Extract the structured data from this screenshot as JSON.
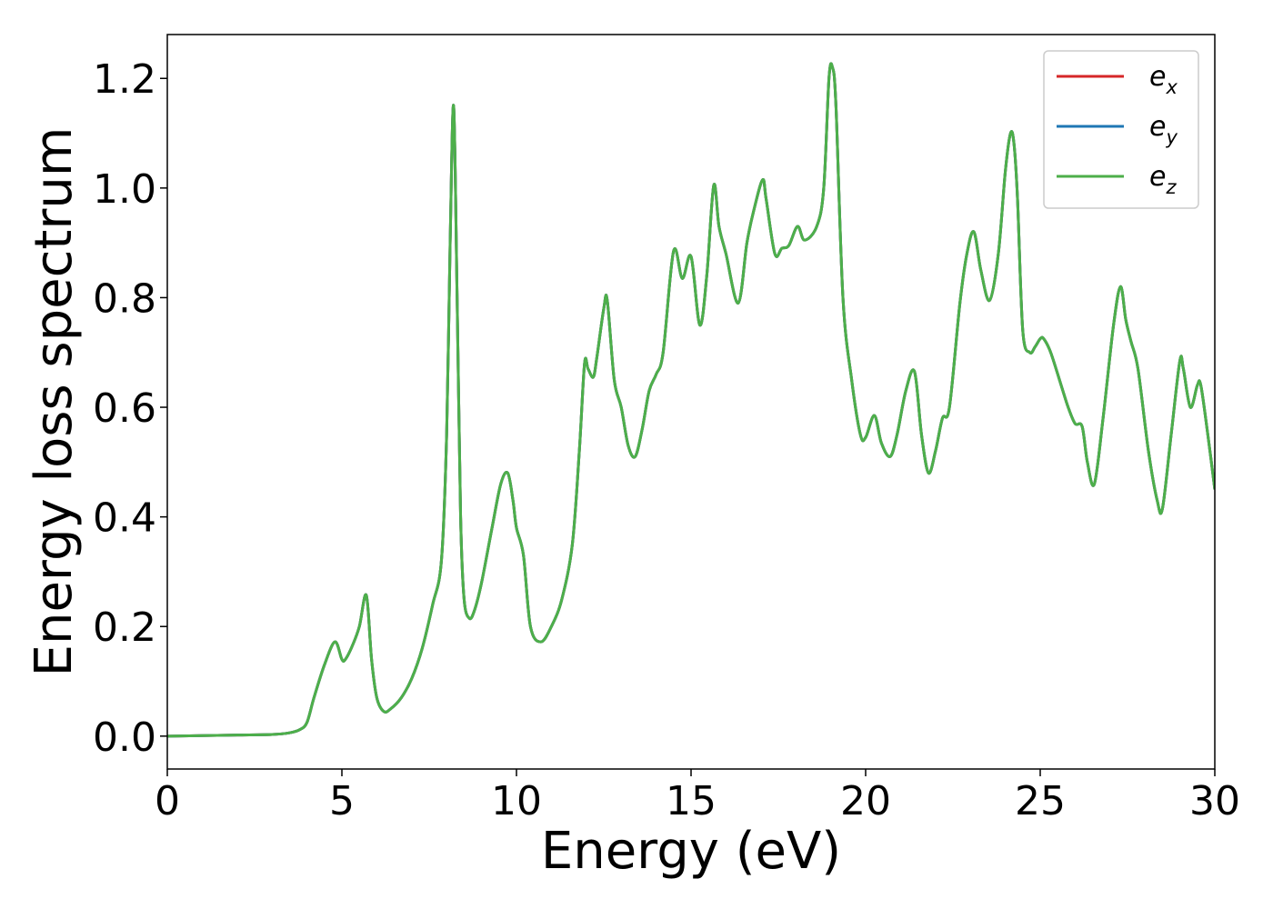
{
  "chart_data": {
    "type": "line",
    "xlabel": "Energy (eV)",
    "ylabel": "Energy loss spectrum",
    "xlim": [
      0,
      30
    ],
    "ylim": [
      -0.06,
      1.28
    ],
    "xticks": [
      0,
      5,
      10,
      15,
      20,
      25,
      30
    ],
    "xtick_labels": [
      "0",
      "5",
      "10",
      "15",
      "20",
      "25",
      "30"
    ],
    "yticks": [
      0.0,
      0.2,
      0.4,
      0.6,
      0.8,
      1.0,
      1.2
    ],
    "ytick_labels": [
      "0.0",
      "0.2",
      "0.4",
      "0.6",
      "0.8",
      "1.0",
      "1.2"
    ],
    "grid": false,
    "legend_position": "top-right",
    "series": [
      {
        "name_base": "e",
        "name_sub": "x",
        "color": "#d62728",
        "ref": "x"
      },
      {
        "name_base": "e",
        "name_sub": "y",
        "color": "#1f77b4",
        "ref": "x"
      },
      {
        "name_base": "e",
        "name_sub": "z",
        "color": "#4daf4a",
        "ref": "x"
      }
    ],
    "x": [
      0,
      1,
      2,
      3,
      3.5,
      3.8,
      4.0,
      4.2,
      4.5,
      4.8,
      5.0,
      5.1,
      5.3,
      5.5,
      5.7,
      5.85,
      6.0,
      6.2,
      6.4,
      6.7,
      7.0,
      7.3,
      7.6,
      7.85,
      8.0,
      8.1,
      8.2,
      8.3,
      8.4,
      8.5,
      8.65,
      8.8,
      9.0,
      9.3,
      9.55,
      9.75,
      9.9,
      10.0,
      10.2,
      10.4,
      10.7,
      11.0,
      11.3,
      11.6,
      11.8,
      11.95,
      12.05,
      12.2,
      12.3,
      12.5,
      12.6,
      12.8,
      13.0,
      13.2,
      13.4,
      13.6,
      13.8,
      14.0,
      14.2,
      14.5,
      14.75,
      15.0,
      15.25,
      15.45,
      15.65,
      15.8,
      16.0,
      16.35,
      16.6,
      16.8,
      17.05,
      17.15,
      17.4,
      17.6,
      17.8,
      18.05,
      18.25,
      18.6,
      18.8,
      18.95,
      19.05,
      19.15,
      19.35,
      19.6,
      19.85,
      20.0,
      20.25,
      20.45,
      20.7,
      20.9,
      21.15,
      21.4,
      21.6,
      21.8,
      22.0,
      22.2,
      22.4,
      22.7,
      22.9,
      23.1,
      23.3,
      23.55,
      23.8,
      24.0,
      24.15,
      24.25,
      24.35,
      24.5,
      24.7,
      24.85,
      25.0,
      25.1,
      25.3,
      25.6,
      25.8,
      26.0,
      26.2,
      26.35,
      26.55,
      26.8,
      27.1,
      27.3,
      27.45,
      27.6,
      27.8,
      28.1,
      28.35,
      28.5,
      28.75,
      29.0,
      29.1,
      29.3,
      29.5,
      29.6,
      29.8,
      30.0
    ],
    "y": [
      0.0,
      0.001,
      0.002,
      0.003,
      0.006,
      0.012,
      0.025,
      0.07,
      0.13,
      0.172,
      0.14,
      0.14,
      0.165,
      0.2,
      0.257,
      0.14,
      0.07,
      0.045,
      0.05,
      0.07,
      0.105,
      0.16,
      0.24,
      0.32,
      0.55,
      0.9,
      1.15,
      0.8,
      0.4,
      0.25,
      0.215,
      0.23,
      0.28,
      0.38,
      0.46,
      0.48,
      0.43,
      0.38,
      0.33,
      0.2,
      0.172,
      0.2,
      0.25,
      0.35,
      0.52,
      0.68,
      0.67,
      0.655,
      0.69,
      0.78,
      0.795,
      0.65,
      0.6,
      0.53,
      0.51,
      0.56,
      0.63,
      0.66,
      0.7,
      0.885,
      0.835,
      0.875,
      0.75,
      0.84,
      1.005,
      0.93,
      0.88,
      0.79,
      0.9,
      0.96,
      1.015,
      0.98,
      0.88,
      0.89,
      0.895,
      0.93,
      0.905,
      0.93,
      1.0,
      1.2,
      1.22,
      1.15,
      0.8,
      0.65,
      0.55,
      0.545,
      0.585,
      0.535,
      0.51,
      0.55,
      0.63,
      0.665,
      0.55,
      0.48,
      0.52,
      0.58,
      0.6,
      0.79,
      0.88,
      0.92,
      0.85,
      0.795,
      0.88,
      1.03,
      1.1,
      1.08,
      0.98,
      0.74,
      0.7,
      0.71,
      0.725,
      0.725,
      0.7,
      0.64,
      0.6,
      0.57,
      0.565,
      0.5,
      0.46,
      0.58,
      0.75,
      0.82,
      0.76,
      0.72,
      0.67,
      0.52,
      0.43,
      0.415,
      0.55,
      0.685,
      0.67,
      0.6,
      0.64,
      0.64,
      0.55,
      0.45
    ]
  }
}
